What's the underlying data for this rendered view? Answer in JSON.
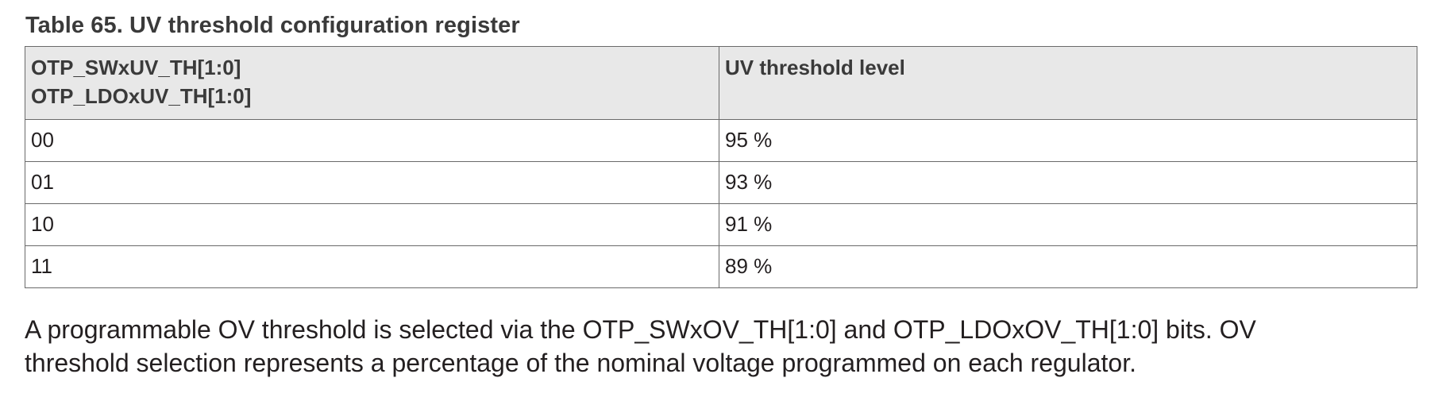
{
  "caption": "Table 65.  UV threshold configuration register",
  "table": {
    "headers": [
      [
        "OTP_SWxUV_TH[1:0]",
        "OTP_LDOxUV_TH[1:0]"
      ],
      [
        "UV threshold level"
      ]
    ],
    "rows": [
      [
        "00",
        "95 %"
      ],
      [
        "01",
        "93 %"
      ],
      [
        "10",
        "91 %"
      ],
      [
        "11",
        "89 %"
      ]
    ]
  },
  "paragraph": {
    "lines": [
      "A programmable OV threshold is selected via the OTP_SWxOV_TH[1:0] and OTP_LDOxOV_TH[1:0] bits. OV",
      "threshold selection represents a percentage of the nominal voltage programmed on each regulator."
    ]
  }
}
